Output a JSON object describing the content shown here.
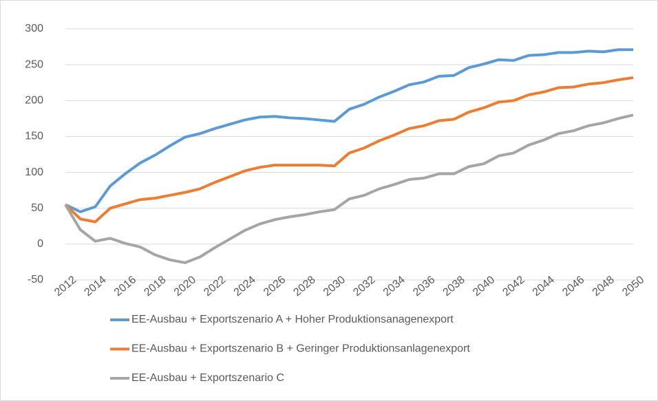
{
  "chart_data": {
    "type": "line",
    "x": [
      2012,
      2013,
      2014,
      2015,
      2016,
      2017,
      2018,
      2019,
      2020,
      2021,
      2022,
      2023,
      2024,
      2025,
      2026,
      2027,
      2028,
      2029,
      2030,
      2031,
      2032,
      2033,
      2034,
      2035,
      2036,
      2037,
      2038,
      2039,
      2040,
      2041,
      2042,
      2043,
      2044,
      2045,
      2046,
      2047,
      2048,
      2049,
      2050
    ],
    "series": [
      {
        "name": "EE-Ausbau + Exportszenario A + Hoher Produktionsanagenexport",
        "color": "#5b9bd5",
        "values": [
          55,
          45,
          52,
          81,
          98,
          113,
          124,
          137,
          149,
          154,
          161,
          167,
          173,
          177,
          178,
          176,
          175,
          173,
          171,
          188,
          195,
          205,
          213,
          222,
          226,
          234,
          235,
          246,
          251,
          257,
          256,
          263,
          264,
          267,
          267,
          269,
          268,
          271,
          271
        ]
      },
      {
        "name": "EE-Ausbau + Exportszenario B + Geringer Produktionsanlagenexport",
        "color": "#ed7d31",
        "values": [
          55,
          35,
          31,
          50,
          56,
          62,
          64,
          68,
          72,
          77,
          86,
          94,
          102,
          107,
          110,
          110,
          110,
          110,
          109,
          127,
          134,
          144,
          152,
          161,
          165,
          172,
          174,
          184,
          190,
          198,
          200,
          208,
          212,
          218,
          219,
          223,
          225,
          229,
          232
        ]
      },
      {
        "name": "EE-Ausbau + Exportszenario C",
        "color": "#a5a5a5",
        "values": [
          55,
          20,
          4,
          8,
          1,
          -4,
          -15,
          -22,
          -26,
          -18,
          -5,
          7,
          19,
          28,
          34,
          38,
          41,
          45,
          48,
          63,
          68,
          77,
          83,
          90,
          92,
          98,
          98,
          108,
          112,
          123,
          127,
          138,
          145,
          154,
          158,
          165,
          169,
          175,
          180
        ]
      }
    ],
    "xlim": [
      2012,
      2050
    ],
    "xticks": [
      2012,
      2014,
      2016,
      2018,
      2020,
      2022,
      2024,
      2026,
      2028,
      2030,
      2032,
      2034,
      2036,
      2038,
      2040,
      2042,
      2044,
      2046,
      2048,
      2050
    ],
    "ylim": [
      -50,
      300
    ],
    "yticks": [
      -50,
      0,
      50,
      100,
      150,
      200,
      250,
      300
    ],
    "grid": true,
    "legend": "bottom"
  }
}
